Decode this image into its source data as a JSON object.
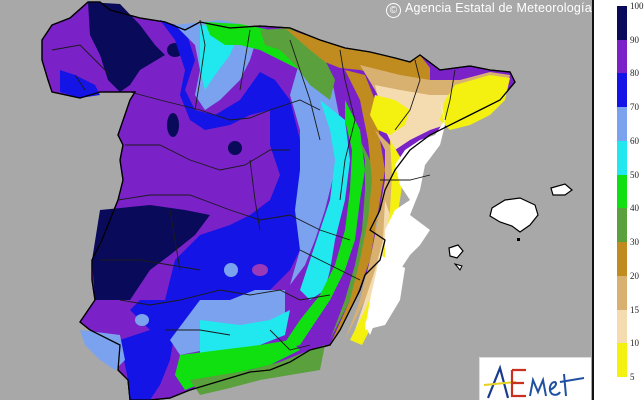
{
  "map": {
    "title_credit": "Agencia Estatal de Meteorología",
    "copyright_symbol": "©",
    "region": "Iberian Peninsula (Spain) and Balearic Islands",
    "background_color": "#a8a8a8",
    "logo_text": "AEMet"
  },
  "legend": {
    "stops": [
      {
        "label": "100",
        "color": "#0a0a5a"
      },
      {
        "label": "90",
        "color": "#7a22c8"
      },
      {
        "label": "80",
        "color": "#1414e6"
      },
      {
        "label": "70",
        "color": "#7aa2ee"
      },
      {
        "label": "60",
        "color": "#20e8ee"
      },
      {
        "label": "50",
        "color": "#10e010"
      },
      {
        "label": "40",
        "color": "#5aa03c"
      },
      {
        "label": "30",
        "color": "#c08c20"
      },
      {
        "label": "20",
        "color": "#d8b070"
      },
      {
        "label": "15",
        "color": "#f4dcb0"
      },
      {
        "label": "10",
        "color": "#f4f010"
      },
      {
        "label": "5",
        "color": "#ffffff"
      }
    ]
  }
}
